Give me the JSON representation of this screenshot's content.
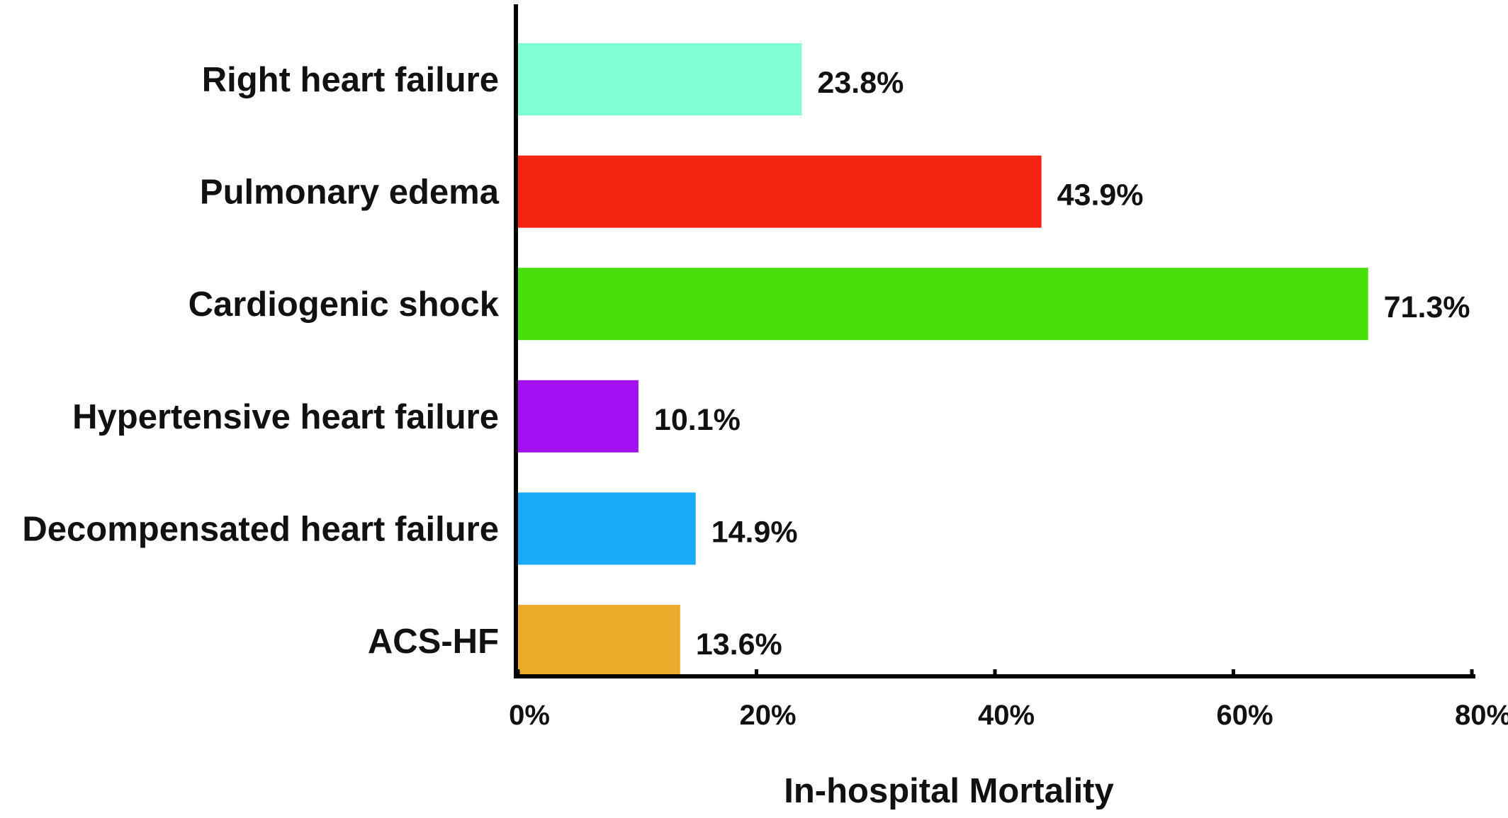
{
  "chart_data": {
    "type": "bar",
    "orientation": "horizontal",
    "categories": [
      "Right heart failure",
      "Pulmonary edema",
      "Cardiogenic shock",
      "Hypertensive heart failure",
      "Decompensated heart failure",
      "ACS-HF"
    ],
    "values": [
      23.8,
      43.9,
      71.3,
      10.1,
      14.9,
      13.6
    ],
    "value_labels": [
      "23.8%",
      "43.9%",
      "71.3%",
      "10.1%",
      "14.9%",
      "13.6%"
    ],
    "colors": [
      "#80FFD4",
      "#F52311",
      "#47E00B",
      "#A010F0",
      "#1AABF7",
      "#ECAA2A"
    ],
    "title": "",
    "xlabel": "In-hospital Mortality",
    "ylabel": "",
    "xlim": [
      0,
      80
    ],
    "x_ticks": [
      0,
      20,
      40,
      60,
      80
    ],
    "x_tick_labels": [
      "0%",
      "20%",
      "40%",
      "60%",
      "80%"
    ],
    "grid": false,
    "legend": "none"
  }
}
